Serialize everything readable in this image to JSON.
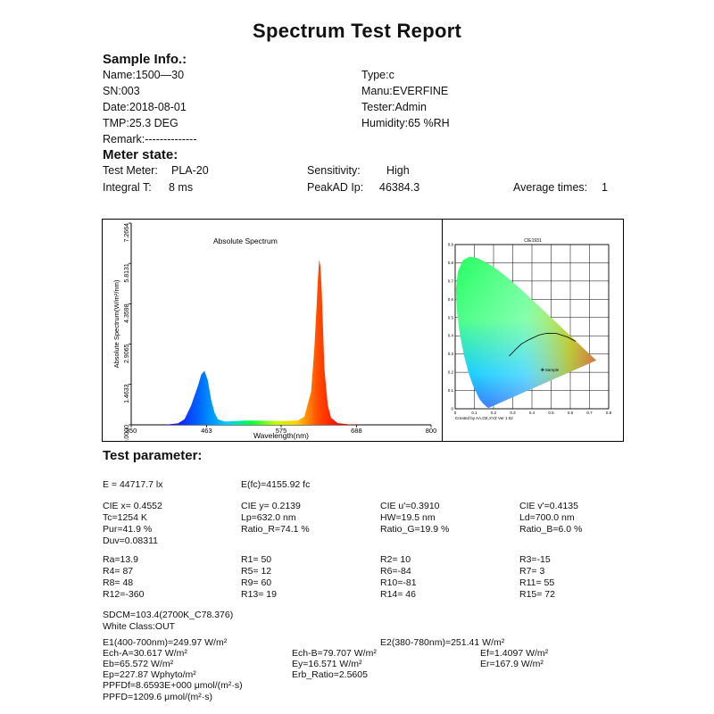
{
  "title": "Spectrum  Test Report",
  "sample": {
    "heading": "Sample Info.:",
    "name": "Name:1500—30",
    "sn": "SN:003",
    "date": "Date:2018-08-01",
    "tmp": "TMP:25.3 DEG",
    "remark": "Remark:--------------",
    "type": "Type:c",
    "manu": "Manu:EVERFINE",
    "tester": "Tester:Admin",
    "humidity": "Humidity:65 %RH"
  },
  "meter": {
    "heading": "Meter state:",
    "test_meter_label": "Test Meter:",
    "test_meter_value": "PLA-20",
    "integral_label": "Integral T:",
    "integral_value": "8 ms",
    "sensitivity_label": "Sensitivity:",
    "sensitivity_value": "High",
    "peakad_label": "PeakAD Ip:",
    "peakad_value": "46384.3",
    "avg_label": "Average times:",
    "avg_value": "1"
  },
  "chart_data": [
    {
      "type": "area",
      "title": "Absolute Spectrum",
      "xlabel": "Wavelength(nm)",
      "ylabel": "Absolute Spectrum(W/m²/nm)",
      "x_ticks": [
        "350",
        "463",
        "575",
        "688",
        "800"
      ],
      "y_ticks": [
        "0.0000",
        "1.4633",
        "2.9065",
        "4.3598",
        "5.8131",
        "7.2664"
      ],
      "xlim": [
        350,
        800
      ],
      "ylim": [
        0,
        7.2664
      ],
      "x": [
        350,
        400,
        420,
        430,
        440,
        450,
        455,
        460,
        465,
        470,
        475,
        480,
        490,
        500,
        520,
        540,
        560,
        580,
        600,
        610,
        620,
        625,
        628,
        630,
        632,
        634,
        636,
        638,
        640,
        645,
        650,
        660,
        680,
        700,
        750,
        800
      ],
      "y": [
        0.0,
        0.0,
        0.05,
        0.2,
        0.7,
        1.4,
        1.8,
        1.95,
        1.6,
        0.9,
        0.45,
        0.2,
        0.12,
        0.13,
        0.15,
        0.15,
        0.14,
        0.14,
        0.15,
        0.3,
        1.2,
        2.8,
        4.2,
        5.2,
        5.95,
        5.7,
        4.8,
        3.4,
        2.0,
        0.7,
        0.25,
        0.06,
        0.01,
        0.0,
        0.0,
        0.0
      ],
      "grid": false
    },
    {
      "type": "scatter",
      "title": "CIE1931",
      "footer": "Created by  AA,GE,XYZ Ver 1.02",
      "x_ticks": [
        "0",
        "0.1",
        "0.2",
        "0.3",
        "0.4",
        "0.5",
        "0.6",
        "0.7",
        "0.8"
      ],
      "y_ticks": [
        "0",
        "0.1",
        "0.2",
        "0.3",
        "0.4",
        "0.5",
        "0.6",
        "0.7",
        "0.8",
        "0.9"
      ],
      "xlim": [
        0,
        0.8
      ],
      "ylim": [
        0,
        0.9
      ],
      "point_label": "Sample",
      "points": [
        {
          "x": 0.4552,
          "y": 0.2139
        }
      ],
      "grid": true
    }
  ],
  "params": {
    "heading": "Test parameter:",
    "E": "E =  44717.7 lx",
    "Efc": "E(fc)=4155.92 fc",
    "cie_x": "CIE x= 0.4552",
    "cie_y": "CIE y= 0.2139",
    "cie_u": "CIE u'=0.3910",
    "cie_v": "CIE v'=0.4135",
    "tc": "Tc=1254 K",
    "lp": "Lp=632.0 nm",
    "hw": "HW=19.5 nm",
    "ld": "Ld=700.0 nm",
    "pur": "Pur=41.9 %",
    "ratio_r": "Ratio_R=74.1 %",
    "ratio_g": "Ratio_G=19.9 %",
    "ratio_b": "Ratio_B=6.0 %",
    "duv": "Duv=0.08311",
    "ra_rows": [
      [
        "Ra=13.9",
        "R1= 50",
        "R2= 10",
        "R3=-15"
      ],
      [
        "R4= 87",
        "R5= 12",
        "R6=-84",
        "R7=  3"
      ],
      [
        "R8= 48",
        "R9= 60",
        "R10=-81",
        "R11= 55"
      ],
      [
        "R12=-360",
        "R13= 19",
        "R14= 46",
        "R15= 72"
      ]
    ],
    "sdcm": "SDCM=103.4(2700K_C78.376)",
    "white_class": "White Class:OUT",
    "e1": "E1(400-700nm)=249.97 W/m²",
    "e2": "E2(380-780nm)=251.41 W/m²",
    "ech_a": "Ech-A=30.617 W/m²",
    "ech_b": "Ech-B=79.707 W/m²",
    "ef": "Ef=1.4097 W/m²",
    "eb": "Eb=65.572 W/m²",
    "ey": "Ey=16.571 W/m²",
    "er": "Er=167.9 W/m²",
    "ep": "Ep=227.87 Wphyto/m²",
    "erb": "Erb_Ratio=2.5605",
    "ppfdf": "PPFDf=8.6593E+000 μmol/(m²·s)",
    "ppfd": "PPFD=1209.6 μmol/(m²·s)"
  }
}
